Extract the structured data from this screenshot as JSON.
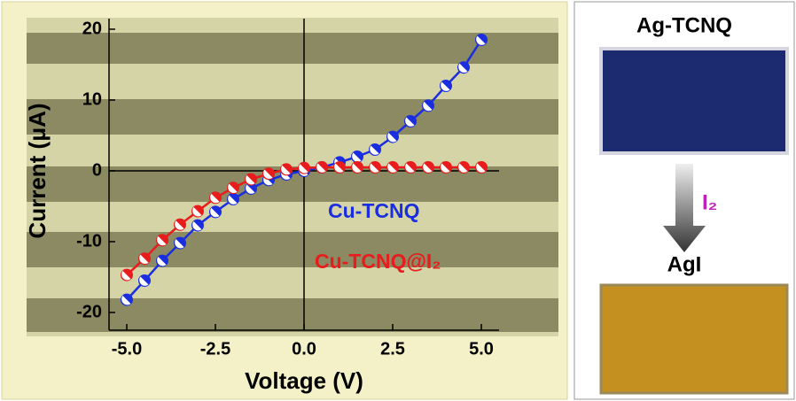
{
  "chart_data": {
    "type": "line",
    "x_label": "Voltage (V)",
    "y_label": "Current (μA)",
    "x": [
      -5,
      -4.5,
      -4,
      -3.5,
      -3,
      -2.5,
      -2,
      -1.5,
      -1,
      -0.5,
      0,
      0.5,
      1,
      1.5,
      2,
      2.5,
      3,
      3.5,
      4,
      4.5,
      5
    ],
    "series": [
      {
        "name": "Cu-TCNQ",
        "color": "#1a2ee0",
        "values": [
          -18.2,
          -15.5,
          -12.7,
          -10.2,
          -7.7,
          -5.8,
          -4,
          -2.5,
          -1.3,
          -0.5,
          0,
          0.5,
          1.2,
          2,
          3,
          4.8,
          7,
          9.2,
          12,
          14.6,
          18.5
        ]
      },
      {
        "name": "Cu-TCNQ@I₂",
        "color": "#e81c1c",
        "values": [
          -14.7,
          -12.4,
          -9.8,
          -7.6,
          -5.7,
          -3.8,
          -2.4,
          -1.2,
          -0.4,
          0.2,
          0.4,
          0.5,
          0.5,
          0.5,
          0.5,
          0.5,
          0.5,
          0.5,
          0.5,
          0.5,
          0.5
        ]
      }
    ],
    "xlim": [
      -5.5,
      5.5
    ],
    "xticks": [
      {
        "value": -5,
        "label": "-5.0"
      },
      {
        "value": -2.5,
        "label": "-2.5"
      },
      {
        "value": 0,
        "label": "0.0"
      },
      {
        "value": 2.5,
        "label": "2.5"
      },
      {
        "value": 5,
        "label": "5.0"
      }
    ],
    "ylim": [
      -22.5,
      21.5
    ],
    "yticks": [
      -20,
      -10,
      0,
      10,
      20
    ]
  },
  "side_panel": {
    "top_label": "Ag-TCNQ",
    "reagent": "I₂",
    "bottom_label": "AgI"
  }
}
